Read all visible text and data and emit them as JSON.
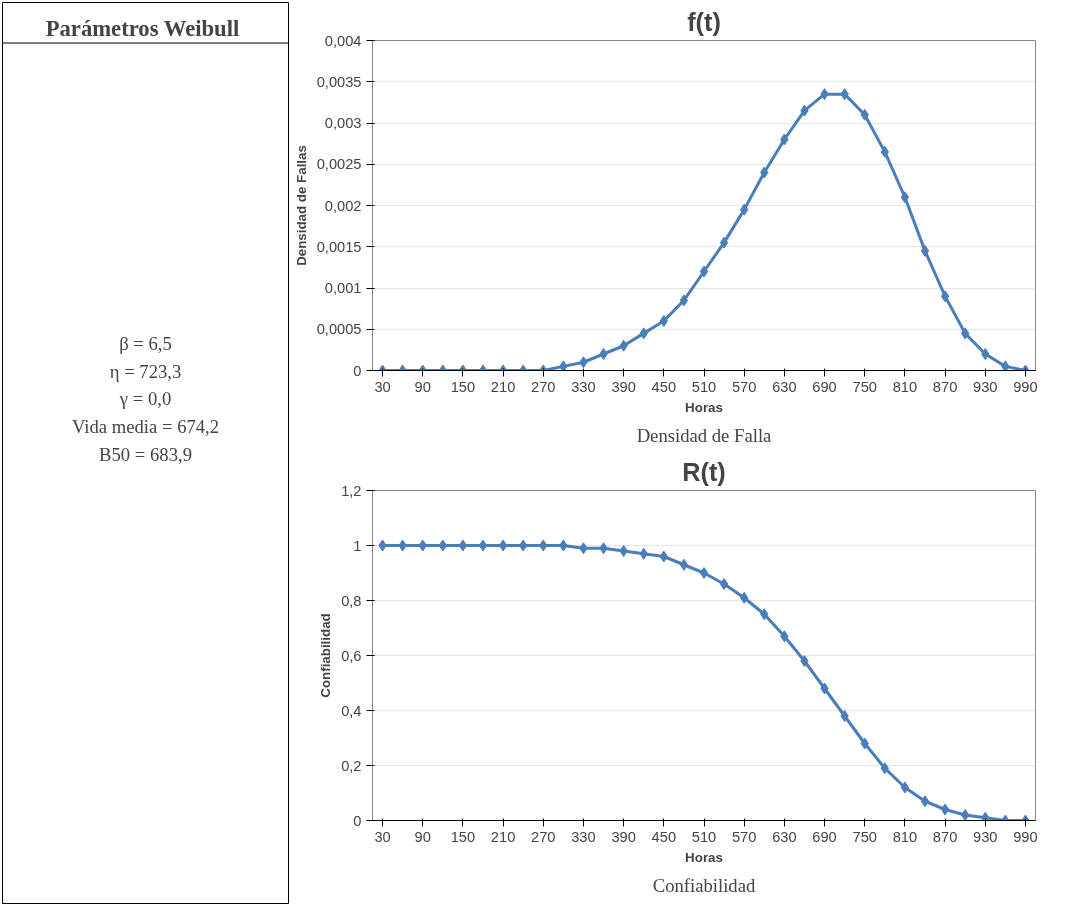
{
  "chart_data": [
    {
      "type": "other",
      "title": "Parámetros  Weibull",
      "annotations": [
        "β = 6,5",
        "η = 723,3",
        "γ = 0,0",
        "Vida media = 674,2",
        "B50 = 683,9"
      ]
    },
    {
      "type": "line",
      "title": "f(t)",
      "xlabel": "Horas",
      "ylabel": "Densidad de Fallas",
      "marker": "diamond",
      "grid": "y",
      "color": "#4a7ebb",
      "x": [
        30,
        60,
        90,
        120,
        150,
        180,
        210,
        240,
        270,
        300,
        330,
        360,
        390,
        420,
        450,
        480,
        510,
        540,
        570,
        600,
        630,
        660,
        690,
        720,
        750,
        780,
        810,
        840,
        870,
        900,
        930,
        960,
        990
      ],
      "values": [
        0,
        0,
        0,
        0,
        0,
        0,
        0,
        0,
        0,
        5e-05,
        0.0001,
        0.0002,
        0.0003,
        0.00045,
        0.0006,
        0.00085,
        0.0012,
        0.00155,
        0.00195,
        0.0024,
        0.0028,
        0.00315,
        0.00335,
        0.00335,
        0.0031,
        0.00265,
        0.0021,
        0.00145,
        0.0009,
        0.00045,
        0.0002,
        5e-05,
        0
      ],
      "xlim": [
        15,
        1005
      ],
      "xticks": [
        30,
        90,
        150,
        210,
        270,
        330,
        390,
        450,
        510,
        570,
        630,
        690,
        750,
        810,
        870,
        930,
        990
      ],
      "ylim": [
        0,
        0.004
      ],
      "yticks": [
        0,
        {
          "value": 0.0005,
          "label": "0,0005"
        },
        {
          "value": 0.001,
          "label": "0,001"
        },
        {
          "value": 0.0015,
          "label": "0,0015"
        },
        {
          "value": 0.002,
          "label": "0,002"
        },
        {
          "value": 0.0025,
          "label": "0,0025"
        },
        {
          "value": 0.003,
          "label": "0,003"
        },
        {
          "value": 0.0035,
          "label": "0,0035"
        },
        {
          "value": 0.004,
          "label": "0,004"
        }
      ],
      "annotations": [
        "Densidad de Falla"
      ]
    },
    {
      "type": "line",
      "title": "R(t)",
      "xlabel": "Horas",
      "ylabel": "Confiabilidad",
      "marker": "diamond",
      "grid": "y",
      "color": "#4a7ebb",
      "x": [
        30,
        60,
        90,
        120,
        150,
        180,
        210,
        240,
        270,
        300,
        330,
        360,
        390,
        420,
        450,
        480,
        510,
        540,
        570,
        600,
        630,
        660,
        690,
        720,
        750,
        780,
        810,
        840,
        870,
        900,
        930,
        960,
        990
      ],
      "values": [
        1,
        1,
        1,
        1,
        1,
        1,
        1,
        1,
        1,
        1,
        0.99,
        0.99,
        0.98,
        0.97,
        0.96,
        0.93,
        0.9,
        0.86,
        0.81,
        0.75,
        0.67,
        0.58,
        0.48,
        0.38,
        0.28,
        0.19,
        0.12,
        0.07,
        0.04,
        0.02,
        0.01,
        0,
        0
      ],
      "xlim": [
        15,
        1005
      ],
      "xticks": [
        30,
        90,
        150,
        210,
        270,
        330,
        390,
        450,
        510,
        570,
        630,
        690,
        750,
        810,
        870,
        930,
        990
      ],
      "ylim": [
        0,
        1.2
      ],
      "yticks": [
        0,
        {
          "value": 0.2,
          "label": "0,2"
        },
        {
          "value": 0.4,
          "label": "0,4"
        },
        {
          "value": 0.6,
          "label": "0,6"
        },
        {
          "value": 0.8,
          "label": "0,8"
        },
        1,
        {
          "value": 1.2,
          "label": "1,2"
        }
      ],
      "annotations": [
        "Confiabilidad"
      ]
    }
  ]
}
